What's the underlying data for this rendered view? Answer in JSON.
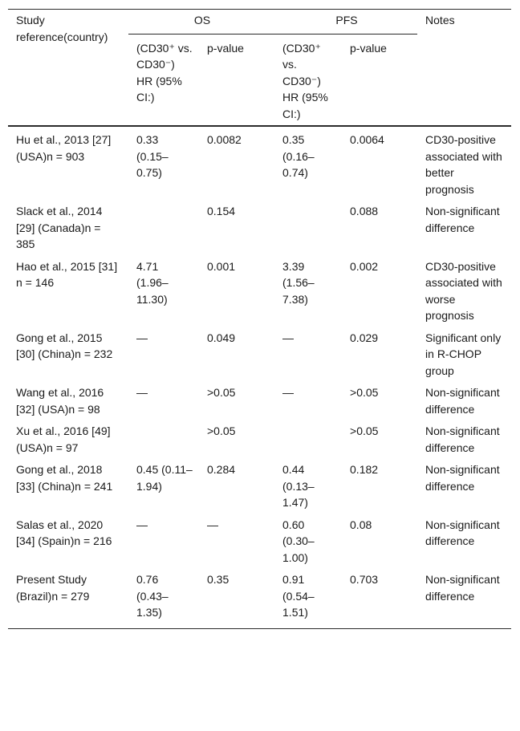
{
  "header": {
    "study": "Study reference(country)",
    "os": "OS",
    "pfs": "PFS",
    "notes": "Notes",
    "hr": "(CD30⁺ vs. CD30⁻) HR (95% CI:)",
    "pvalue": "p-value"
  },
  "rows": [
    {
      "study": "Hu et al., 2013 [27] (USA)n = 903",
      "os_hr": "0.33 (0.15–0.75)",
      "os_p": "0.0082",
      "pfs_hr": "0.35 (0.16–0.74)",
      "pfs_p": "0.0064",
      "notes": "CD30-positive associated with better prognosis"
    },
    {
      "study": "Slack et al., 2014 [29] (Canada)n = 385",
      "os_hr": "",
      "os_p": "0.154",
      "pfs_hr": "",
      "pfs_p": "0.088",
      "notes": "Non-significant difference"
    },
    {
      "study": "Hao et al., 2015 [31] n = 146",
      "os_hr": "4.71 (1.96–11.30)",
      "os_p": "0.001",
      "pfs_hr": "3.39 (1.56–7.38)",
      "pfs_p": "0.002",
      "notes": "CD30-positive associated with worse prognosis"
    },
    {
      "study": "Gong et al., 2015 [30] (China)n = 232",
      "os_hr": "—",
      "os_p": "0.049",
      "pfs_hr": "—",
      "pfs_p": "0.029",
      "notes": "Significant only in R-CHOP group"
    },
    {
      "study": "Wang et al., 2016 [32] (USA)n = 98",
      "os_hr": "—",
      "os_p": ">0.05",
      "pfs_hr": "—",
      "pfs_p": ">0.05",
      "notes": "Non-significant difference"
    },
    {
      "study": "Xu et al., 2016 [49] (USA)n = 97",
      "os_hr": "",
      "os_p": ">0.05",
      "pfs_hr": "",
      "pfs_p": ">0.05",
      "notes": "Non-significant difference"
    },
    {
      "study": "Gong et al., 2018 [33] (China)n = 241",
      "os_hr": "0.45 (0.11–1.94)",
      "os_p": "0.284",
      "pfs_hr": "0.44 (0.13–1.47)",
      "pfs_p": "0.182",
      "notes": "Non-significant difference"
    },
    {
      "study": "Salas et al., 2020 [34] (Spain)n = 216",
      "os_hr": "—",
      "os_p": "—",
      "pfs_hr": "0.60 (0.30–1.00)",
      "pfs_p": "0.08",
      "notes": "Non-significant difference"
    },
    {
      "study": "Present Study (Brazil)n = 279",
      "os_hr": "0.76 (0.43–1.35)",
      "os_p": "0.35",
      "pfs_hr": "0.91 (0.54–1.51)",
      "pfs_p": "0.703",
      "notes": "Non-significant difference"
    }
  ]
}
